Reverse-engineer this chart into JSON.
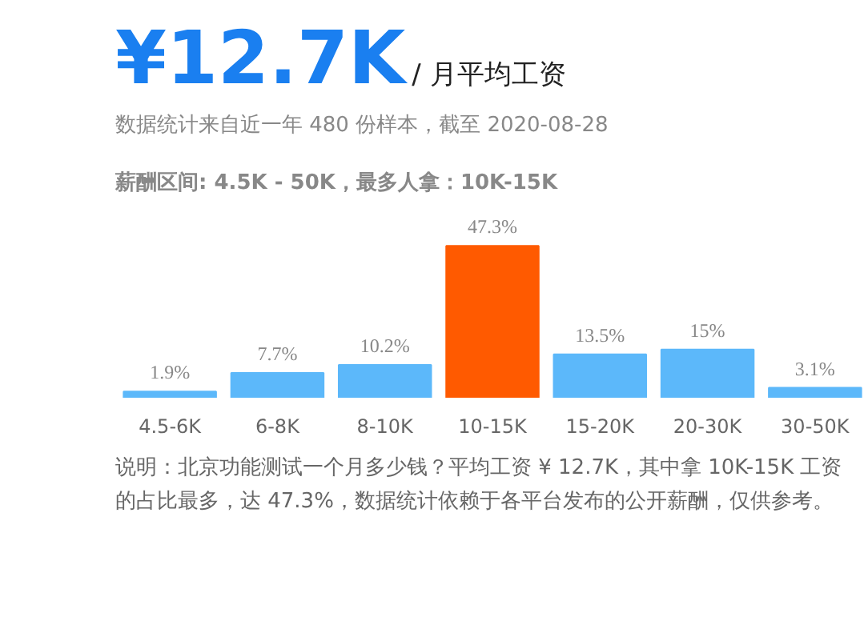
{
  "chart_data": {
    "type": "bar",
    "title": "¥12.7K",
    "subtitle": "/ 月平均工资",
    "annotations": [
      "数据统计来自近一年 480 份样本，截至 2020-08-28",
      "薪酬区间: 4.5K - 50K，最多人拿：10K-15K",
      "说明：北京功能测试一个月多少钱？平均工资 ¥ 12.7K，其中拿 10K-15K 工资的占比最多，达 47.3%，数据统计依赖于各平台发布的公开薪酬，仅供参考。"
    ],
    "categories": [
      "4.5-6K",
      "6-8K",
      "8-10K",
      "10-15K",
      "15-20K",
      "20-30K",
      "30-50K"
    ],
    "values": [
      1.9,
      7.7,
      10.2,
      47.3,
      13.5,
      15,
      3.1
    ],
    "value_labels": [
      "1.9%",
      "7.7%",
      "10.2%",
      "47.3%",
      "13.5%",
      "15%",
      "3.1%"
    ],
    "colors": [
      "#5cb8fa",
      "#5cb8fa",
      "#5cb8fa",
      "#ff5a00",
      "#5cb8fa",
      "#5cb8fa",
      "#5cb8fa"
    ],
    "grid": false
  }
}
